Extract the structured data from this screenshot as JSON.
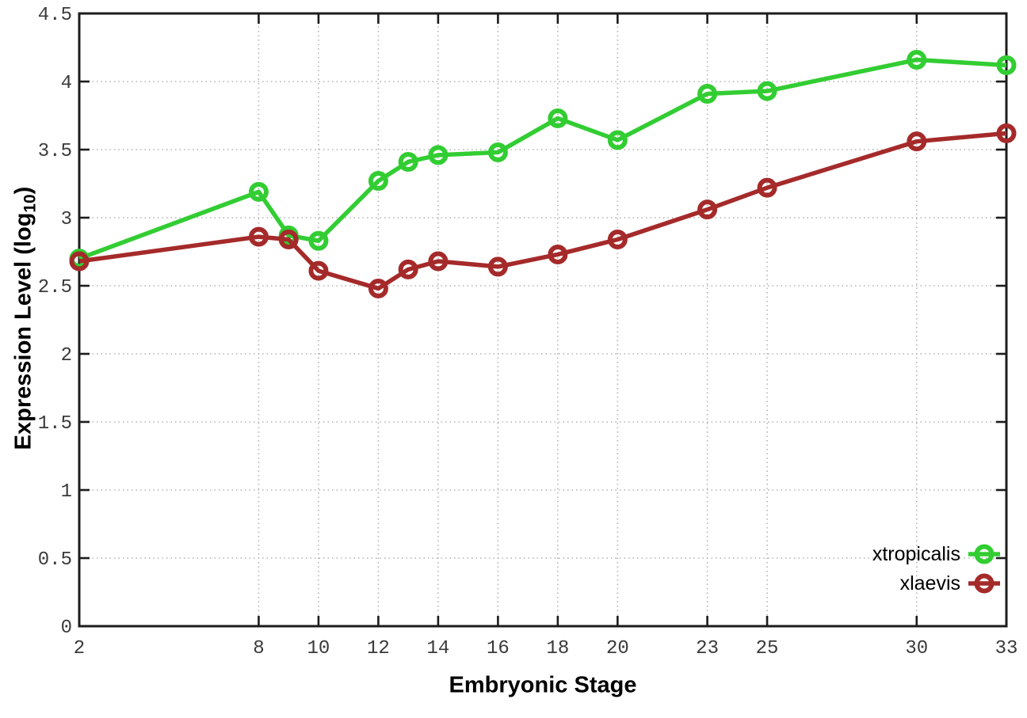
{
  "figure": {
    "background": "#ffffff",
    "xlabel": "Embryonic Stage",
    "ylabel": "Expression Level (log10)",
    "ylabel_prefix": "Expression Level (log",
    "ylabel_sub": "10",
    "ylabel_suffix": ")"
  },
  "chart_data": {
    "type": "line",
    "title": "",
    "xlabel": "Embryonic Stage",
    "ylabel": "Expression Level (log10)",
    "xlim": [
      2,
      33
    ],
    "ylim": [
      0,
      4.5
    ],
    "x_ticks": [
      2,
      8,
      10,
      12,
      14,
      16,
      18,
      20,
      23,
      25,
      30,
      33
    ],
    "y_tick_labels": [
      "0",
      "0.5",
      "1",
      "1.5",
      "2",
      "2.5",
      "3",
      "3.5",
      "4",
      "4.5"
    ],
    "y_ticks": [
      0,
      0.5,
      1,
      1.5,
      2,
      2.5,
      3,
      3.5,
      4,
      4.5
    ],
    "grid": true,
    "legend_position": "bottom-right-inside",
    "x": [
      2,
      8,
      9,
      10,
      12,
      13,
      14,
      16,
      18,
      20,
      23,
      25,
      30,
      33
    ],
    "series": [
      {
        "name": "xtropicalis",
        "color": "#32cd32",
        "marker": "open-circle",
        "values": [
          2.7,
          3.19,
          2.87,
          2.83,
          3.27,
          3.41,
          3.46,
          3.48,
          3.73,
          3.57,
          3.91,
          3.93,
          4.16,
          4.12
        ]
      },
      {
        "name": "xlaevis",
        "color": "#a52a2a",
        "marker": "open-circle",
        "values": [
          2.68,
          2.86,
          2.84,
          2.61,
          2.48,
          2.62,
          2.68,
          2.64,
          2.73,
          2.84,
          3.06,
          3.22,
          3.56,
          3.62
        ]
      }
    ]
  },
  "style": {
    "axis_color": "#1c1c1c",
    "grid_color": "#b3b3b3",
    "tick_label_color": "#3a3a3a",
    "legend_text_color": "#000000"
  }
}
